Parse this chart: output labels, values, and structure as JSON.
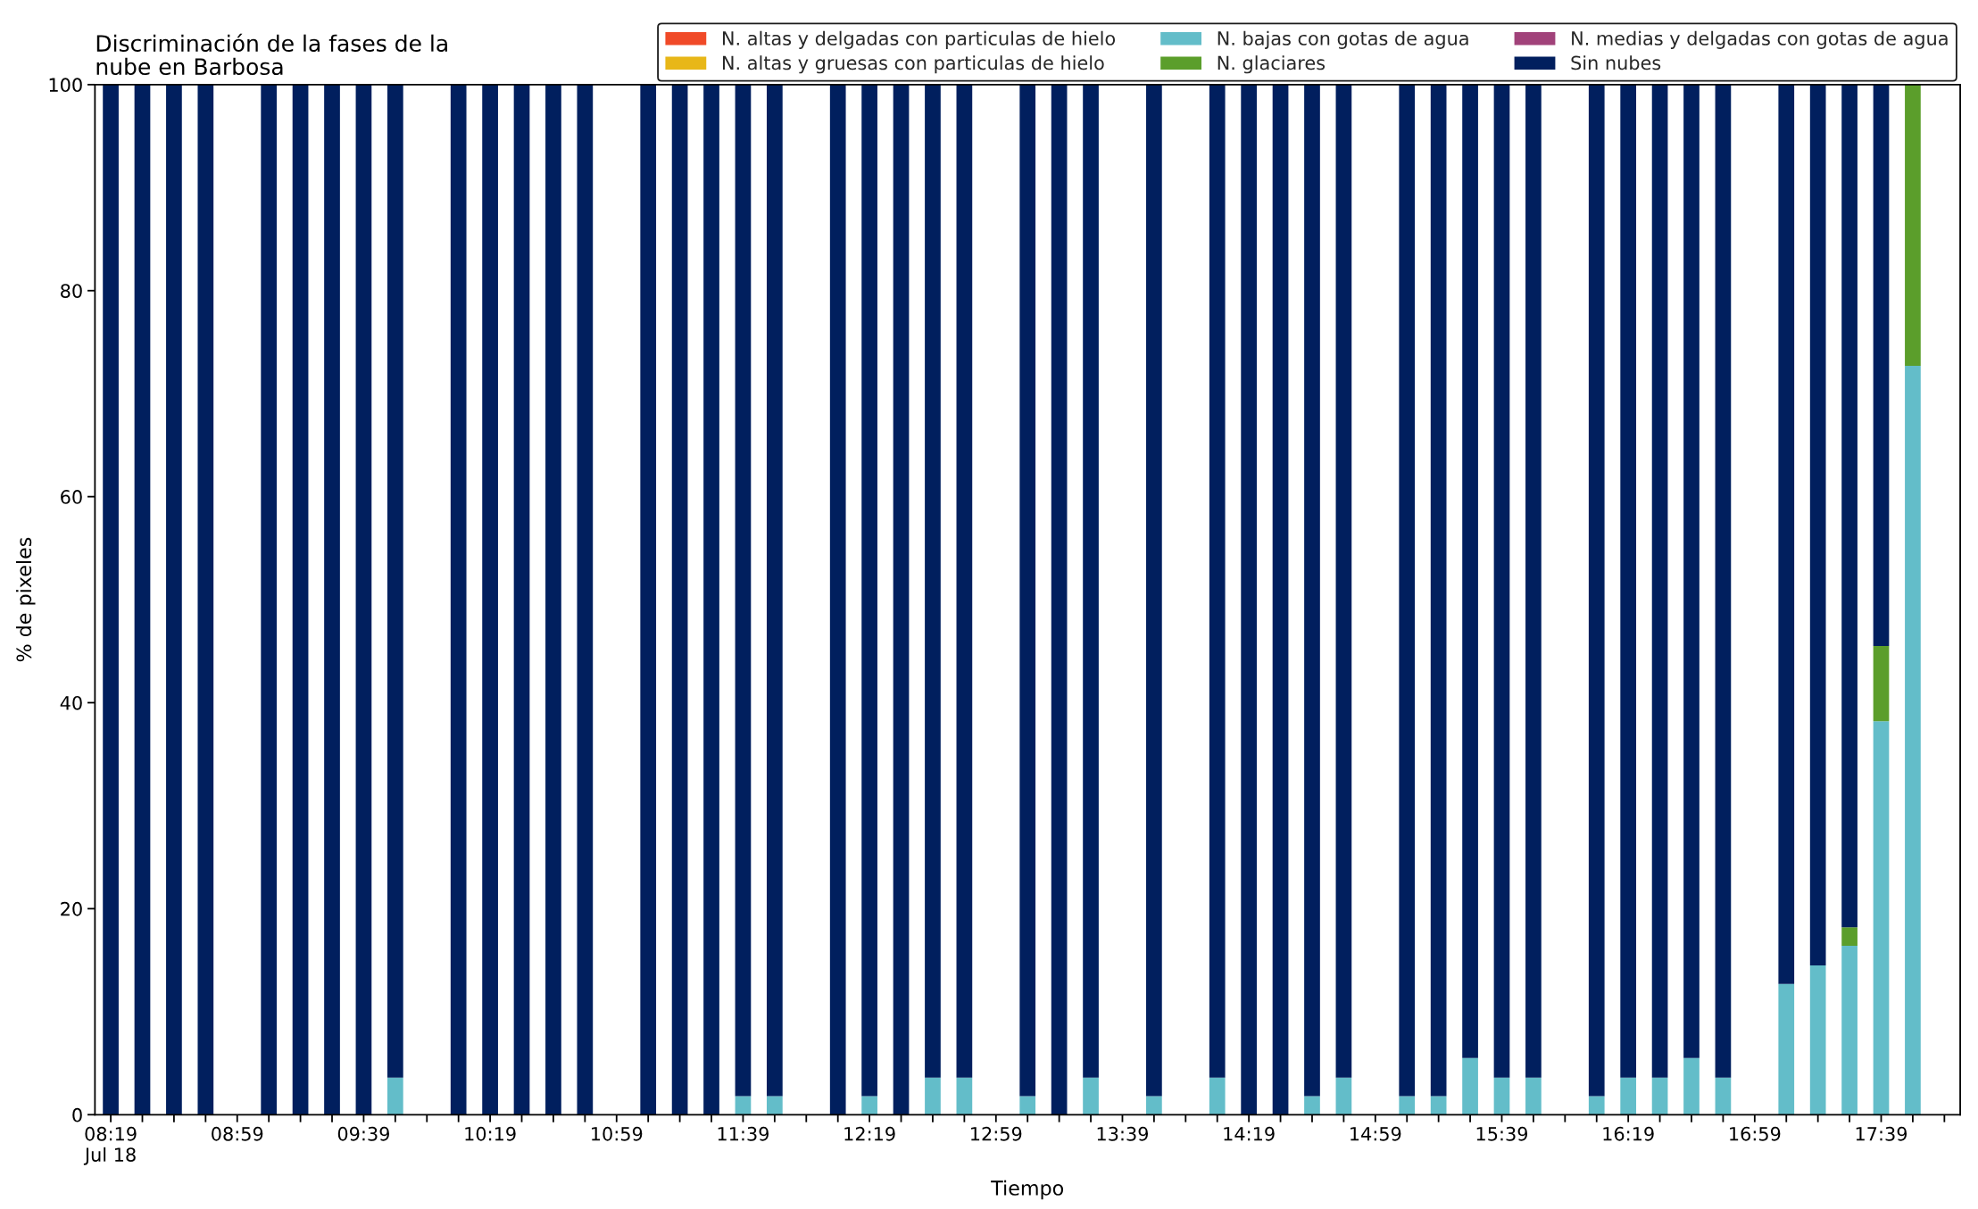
{
  "chart_data": {
    "type": "bar",
    "title": "Discriminación de la fases de la\nnube en Barbosa",
    "xlabel": "Tiempo",
    "ylabel": "% de pixeles",
    "stacked": true,
    "legend": "top right",
    "ylim": [
      0,
      100
    ],
    "yticks": [
      0,
      20,
      40,
      60,
      80,
      100
    ],
    "categories": [
      "08:19\nJul 18",
      null,
      null,
      null,
      "08:59",
      null,
      null,
      null,
      "09:39",
      null,
      null,
      null,
      "10:19",
      null,
      null,
      null,
      "10:59",
      null,
      null,
      null,
      "11:39",
      null,
      null,
      null,
      "12:19",
      null,
      null,
      null,
      "12:59",
      null,
      null,
      null,
      "13:39",
      null,
      null,
      null,
      "14:19",
      null,
      null,
      null,
      "14:59",
      null,
      null,
      null,
      "15:39",
      null,
      null,
      null,
      "16:19",
      null,
      null,
      null,
      "16:59",
      null,
      null,
      null,
      "17:39",
      null,
      null
    ],
    "series": [
      {
        "name": "N. altas y delgadas con particulas de hielo",
        "color": "#f04a28",
        "values": [
          0,
          0,
          0,
          0,
          null,
          0,
          0,
          0,
          0,
          0,
          null,
          0,
          0,
          0,
          0,
          0,
          null,
          0,
          0,
          0,
          0,
          0,
          null,
          0,
          0,
          0,
          0,
          0,
          null,
          0,
          0,
          0,
          null,
          0,
          null,
          0,
          0,
          0,
          0,
          0,
          null,
          0,
          0,
          0,
          0,
          0,
          null,
          0,
          0,
          0,
          0,
          0,
          null,
          0,
          0,
          0,
          0,
          0,
          null
        ]
      },
      {
        "name": "N. altas y gruesas con particulas de hielo",
        "color": "#e8b718",
        "values": [
          0,
          0,
          0,
          0,
          null,
          0,
          0,
          0,
          0,
          0,
          null,
          0,
          0,
          0,
          0,
          0,
          null,
          0,
          0,
          0,
          0,
          0,
          null,
          0,
          0,
          0,
          0,
          0,
          null,
          0,
          0,
          0,
          null,
          0,
          null,
          0,
          0,
          0,
          0,
          0,
          null,
          0,
          0,
          0,
          0,
          0,
          null,
          0,
          0,
          0,
          0,
          0,
          null,
          0,
          0,
          0,
          0,
          0,
          null
        ]
      },
      {
        "name": "N. bajas con gotas de agua",
        "color": "#63bdc9",
        "values": [
          0,
          0,
          0,
          0,
          null,
          0,
          0,
          0,
          0,
          3.6,
          null,
          0,
          0,
          0,
          0,
          0,
          null,
          0,
          0,
          0,
          1.8,
          1.8,
          null,
          0,
          1.8,
          0,
          3.6,
          3.6,
          null,
          1.8,
          0,
          3.6,
          null,
          1.8,
          null,
          3.6,
          0,
          0,
          1.8,
          3.6,
          null,
          1.8,
          1.8,
          5.5,
          3.6,
          3.6,
          null,
          1.8,
          3.6,
          3.6,
          5.5,
          3.6,
          null,
          12.7,
          14.5,
          16.4,
          38.2,
          72.7,
          null
        ]
      },
      {
        "name": "N. glaciares",
        "color": "#5b9e2b",
        "values": [
          0,
          0,
          0,
          0,
          null,
          0,
          0,
          0,
          0,
          0,
          null,
          0,
          0,
          0,
          0,
          0,
          null,
          0,
          0,
          0,
          0,
          0,
          null,
          0,
          0,
          0,
          0,
          0,
          null,
          0,
          0,
          0,
          null,
          0,
          null,
          0,
          0,
          0,
          0,
          0,
          null,
          0,
          0,
          0,
          0,
          0,
          null,
          0,
          0,
          0,
          0,
          0,
          null,
          0,
          0,
          1.8,
          7.3,
          27.3,
          null
        ]
      },
      {
        "name": "N. medias y delgadas con gotas de agua",
        "color": "#a1427a",
        "values": [
          0,
          0,
          0,
          0,
          null,
          0,
          0,
          0,
          0,
          0,
          null,
          0,
          0,
          0,
          0,
          0,
          null,
          0,
          0,
          0,
          0,
          0,
          null,
          0,
          0,
          0,
          0,
          0,
          null,
          0,
          0,
          0,
          null,
          0,
          null,
          0,
          0,
          0,
          0,
          0,
          null,
          0,
          0,
          0,
          0,
          0,
          null,
          0,
          0,
          0,
          0,
          0,
          null,
          0,
          0,
          0,
          0,
          0,
          null
        ]
      },
      {
        "name": "Sin nubes",
        "color": "#011f5e",
        "values": [
          100,
          100,
          100,
          100,
          null,
          100,
          100,
          100,
          100,
          96.4,
          null,
          100,
          100,
          100,
          100,
          100,
          null,
          100,
          100,
          100,
          98.2,
          98.2,
          null,
          100,
          98.2,
          100,
          96.4,
          96.4,
          null,
          98.2,
          100,
          96.4,
          null,
          98.2,
          null,
          96.4,
          100,
          100,
          98.2,
          96.4,
          null,
          98.2,
          98.2,
          94.5,
          96.4,
          96.4,
          null,
          98.2,
          96.4,
          96.4,
          94.5,
          96.4,
          null,
          87.3,
          85.5,
          81.8,
          54.5,
          0,
          null
        ]
      }
    ]
  }
}
